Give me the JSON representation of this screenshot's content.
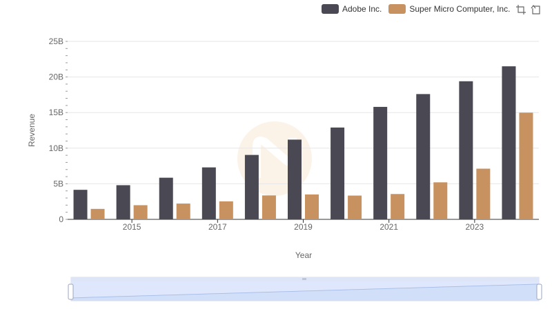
{
  "legend": [
    {
      "name": "Adobe Inc.",
      "color": "#4a4953"
    },
    {
      "name": "Super Micro Computer, Inc.",
      "color": "#c89160"
    }
  ],
  "toolbar": {
    "icons": [
      "zoom-select-icon",
      "zoom-reset-icon"
    ]
  },
  "chart_data": {
    "type": "bar",
    "title": "",
    "xlabel": "Year",
    "ylabel": "Revenue",
    "categories": [
      "2014",
      "2015",
      "2016",
      "2017",
      "2018",
      "2019",
      "2020",
      "2021",
      "2022",
      "2023",
      "2024"
    ],
    "x_tick_labels": [
      "2015",
      "2017",
      "2019",
      "2021",
      "2023"
    ],
    "y_tick_labels": [
      "0",
      "5B",
      "10B",
      "15B",
      "20B",
      "25B"
    ],
    "ylim": [
      0,
      25000000000
    ],
    "grid": true,
    "legend_position": "top-right",
    "series": [
      {
        "name": "Adobe Inc.",
        "color": "#4a4953",
        "values": [
          4150000000,
          4800000000,
          5850000000,
          7300000000,
          9050000000,
          11200000000,
          12900000000,
          15800000000,
          17600000000,
          19400000000,
          21500000000
        ]
      },
      {
        "name": "Super Micro Computer, Inc.",
        "color": "#c89160",
        "values": [
          1470000000,
          1990000000,
          2220000000,
          2530000000,
          3360000000,
          3500000000,
          3340000000,
          3560000000,
          5200000000,
          7120000000,
          14990000000
        ]
      }
    ]
  }
}
